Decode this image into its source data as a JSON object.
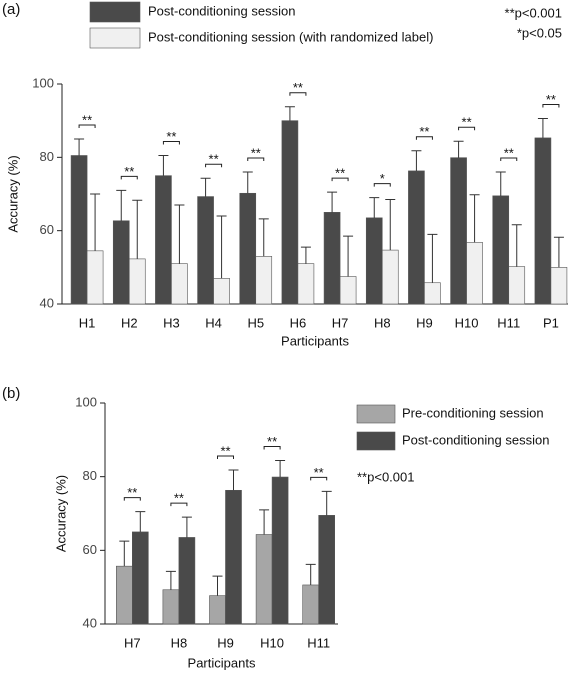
{
  "chart_data": [
    {
      "type": "bar",
      "panel": "(a)",
      "xlabel": "Participants",
      "ylabel": "Accuracy (%)",
      "categories": [
        "H1",
        "H2",
        "H3",
        "H4",
        "H5",
        "H6",
        "H7",
        "H8",
        "H9",
        "H10",
        "H11",
        "P1"
      ],
      "series": [
        {
          "name": "Post-conditioning session",
          "color": "#4a4a4a",
          "values": [
            80.5,
            62.7,
            75,
            69.3,
            70.2,
            90,
            65,
            63.5,
            76.3,
            79.9,
            69.5,
            85.3
          ],
          "errors": [
            4.5,
            8.3,
            5.5,
            5,
            5.8,
            3.8,
            5.5,
            5.5,
            5.5,
            4.5,
            6.5,
            5.3
          ]
        },
        {
          "name": "Post-conditioning session (with randomized label)",
          "color": "#f0f0f0",
          "values": [
            54.5,
            52.3,
            51,
            47,
            53,
            51,
            47.5,
            54.7,
            45.8,
            56.8,
            50.2,
            50
          ],
          "errors": [
            15.5,
            16,
            16,
            17,
            10.2,
            4.5,
            11,
            13.8,
            13.2,
            13,
            11.4,
            8.2
          ]
        }
      ],
      "significance": [
        "**",
        "**",
        "**",
        "**",
        "**",
        "**",
        "**",
        "*",
        "**",
        "**",
        "**",
        "**"
      ],
      "notes": [
        "**p<0.001",
        "*p<0.05"
      ],
      "ylim": [
        40,
        100
      ],
      "yticks": [
        40,
        60,
        80,
        100
      ]
    },
    {
      "type": "bar",
      "panel": "(b)",
      "xlabel": "Participants",
      "ylabel": "Accuracy (%)",
      "categories": [
        "H7",
        "H8",
        "H9",
        "H10",
        "H11"
      ],
      "series": [
        {
          "name": "Pre-conditioning session",
          "color": "#a6a6a6",
          "values": [
            55.7,
            49.3,
            47.7,
            64.3,
            50.6
          ],
          "errors": [
            6.8,
            5,
            5.3,
            6.7,
            5.6
          ]
        },
        {
          "name": "Post-conditioning session",
          "color": "#4a4a4a",
          "values": [
            65,
            63.5,
            76.3,
            79.9,
            69.5
          ],
          "errors": [
            5.5,
            5.5,
            5.5,
            4.5,
            6.5
          ]
        }
      ],
      "significance": [
        "**",
        "**",
        "**",
        "**",
        "**"
      ],
      "notes": [
        "**p<0.001"
      ],
      "ylim": [
        40,
        100
      ],
      "yticks": [
        40,
        60,
        80,
        100
      ]
    }
  ]
}
